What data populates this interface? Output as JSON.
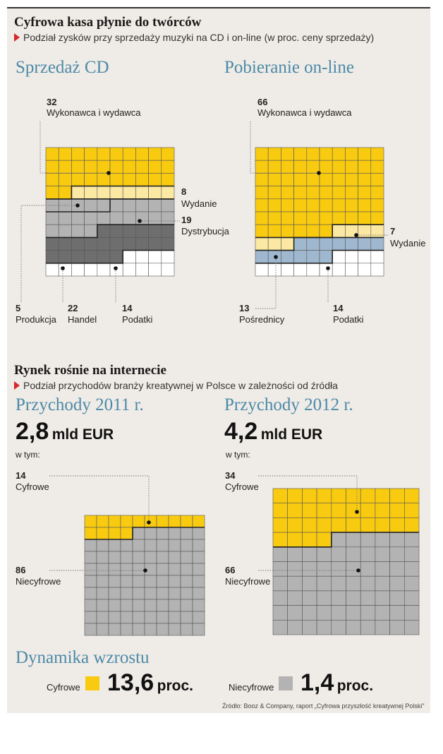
{
  "colors": {
    "yellow": "#f9cb10",
    "light_yellow": "#fbe8a2",
    "grey": "#b3b3b3",
    "dark_grey": "#6e6e6e",
    "blue": "#9fb8cf",
    "white": "#ffffff",
    "accent": "#4c8aa8",
    "marker": "#d7262c"
  },
  "section1": {
    "title": "Cyfrowa kasa płynie do twórców",
    "subtitle": "Podział zysków przy sprzedaży muzyki na CD i on-line (w proc. ceny sprzedaży)",
    "cd": {
      "heading": "Sprzedaż CD",
      "labels": {
        "artist": {
          "value": "32",
          "label": "Wykonawca i wydawca"
        },
        "publishing": {
          "value": "8",
          "label": "Wydanie"
        },
        "distribution": {
          "value": "19",
          "label": "Dystrybucja"
        },
        "production": {
          "value": "5",
          "label": "Produkcja"
        },
        "trade": {
          "value": "22",
          "label": "Handel"
        },
        "taxes": {
          "value": "14",
          "label": "Podatki"
        }
      }
    },
    "online": {
      "heading": "Pobieranie on-line",
      "labels": {
        "artist": {
          "value": "66",
          "label": "Wykonawca i wydawca"
        },
        "publishing": {
          "value": "7",
          "label": "Wydanie"
        },
        "intermediaries": {
          "value": "13",
          "label": "Pośrednicy"
        },
        "taxes": {
          "value": "14",
          "label": "Podatki"
        }
      }
    }
  },
  "section2": {
    "title": "Rynek rośnie na internecie",
    "subtitle": "Podział przychodów branży kreatywnej w Polsce w zależności od źródła",
    "y2011": {
      "heading": "Przychody 2011 r.",
      "value": "2,8",
      "unit": "mld EUR",
      "of_which": "w tym:",
      "digital": {
        "value": "14",
        "label": "Cyfrowe"
      },
      "nondigital": {
        "value": "86",
        "label": "Niecyfrowe"
      }
    },
    "y2012": {
      "heading": "Przychody 2012 r.",
      "value": "4,2",
      "unit": "mld EUR",
      "of_which": "w tym:",
      "digital": {
        "value": "34",
        "label": "Cyfrowe"
      },
      "nondigital": {
        "value": "66",
        "label": "Niecyfrowe"
      }
    }
  },
  "growth": {
    "heading": "Dynamika wzrostu",
    "digital_label": "Cyfrowe",
    "digital_value": "13,6",
    "nondigital_label": "Niecyfrowe",
    "nondigital_value": "1,4",
    "unit": "proc."
  },
  "source": "Źródło: Booz & Company, raport „Cyfrowa przyszłość kreatywnej Polski\"",
  "chart_data": [
    {
      "type": "waffle",
      "title": "Sprzedaż CD",
      "categories": [
        "Wykonawca i wydawca",
        "Wydanie",
        "Dystrybucja",
        "Produkcja",
        "Handel",
        "Podatki"
      ],
      "values": [
        32,
        8,
        19,
        5,
        22,
        14
      ],
      "units": "proc."
    },
    {
      "type": "waffle",
      "title": "Pobieranie on-line",
      "categories": [
        "Wykonawca i wydawca",
        "Wydanie",
        "Pośrednicy",
        "Podatki"
      ],
      "values": [
        66,
        7,
        13,
        14
      ],
      "units": "proc."
    },
    {
      "type": "waffle",
      "title": "Przychody 2011 r.",
      "categories": [
        "Cyfrowe",
        "Niecyfrowe"
      ],
      "values": [
        14,
        86
      ],
      "units": "proc."
    },
    {
      "type": "waffle",
      "title": "Przychody 2012 r.",
      "categories": [
        "Cyfrowe",
        "Niecyfrowe"
      ],
      "values": [
        34,
        66
      ],
      "units": "proc."
    }
  ]
}
